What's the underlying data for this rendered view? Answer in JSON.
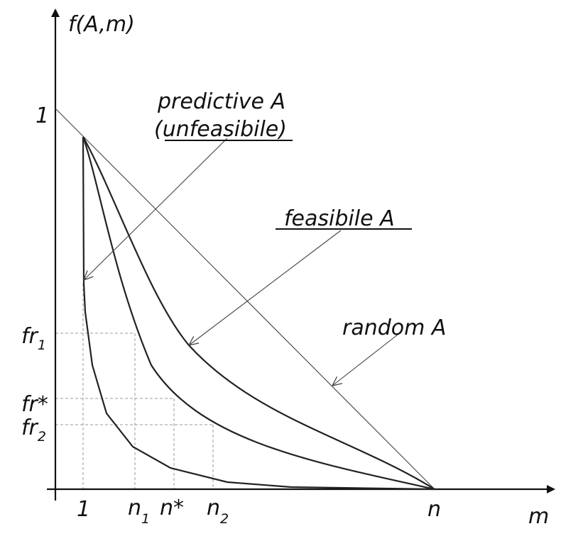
{
  "axes": {
    "y_label": "f(A,m)",
    "x_label": "m",
    "y_tick_one": "1"
  },
  "x_ticks": {
    "one": "1",
    "n1_base": "n",
    "n1_sub": "1",
    "nstar": "n*",
    "n2_base": "n",
    "n2_sub": "2",
    "n": "n"
  },
  "y_ticks": {
    "fr1_base": "fr",
    "fr1_sub": "1",
    "frstar": "fr*",
    "fr2_base": "fr",
    "fr2_sub": "2"
  },
  "annotations": {
    "predictive_line1": "predictive A",
    "predictive_line2": "(unfeasibile)",
    "feasible": "feasibile A",
    "random": "random A"
  },
  "colors": {
    "ink": "#111111",
    "grid": "#999999"
  }
}
